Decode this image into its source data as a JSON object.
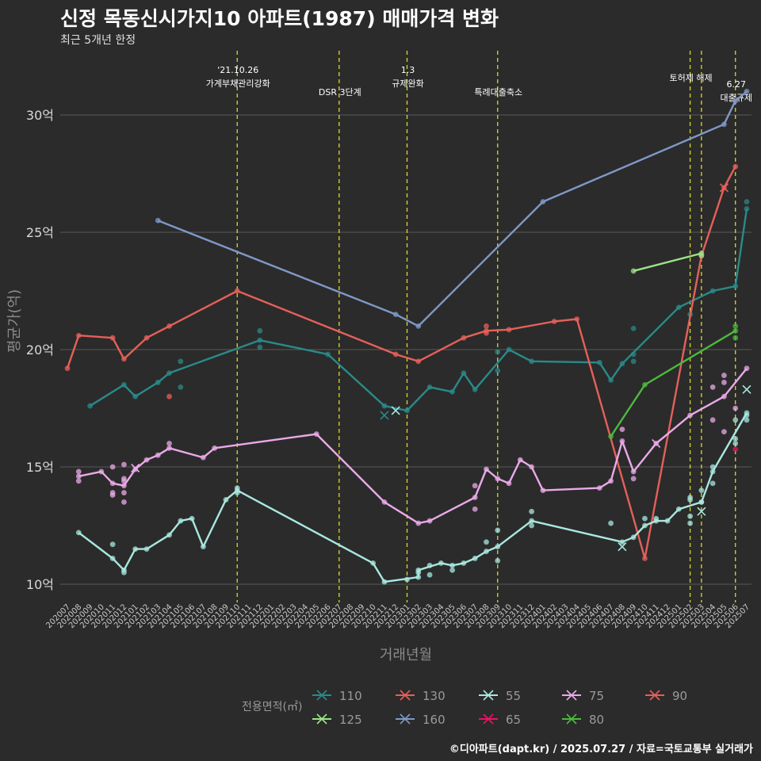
{
  "header": {
    "title": "신정 목동신시가지10 아파트(1987) 매매가격 변화",
    "subtitle": "최근 5개년 한정"
  },
  "caption": "©디아파트(dapt.kr) / 2025.07.27 / 자료=국토교통부 실거래가",
  "colors": {
    "background": "#2b2b2b",
    "grid": "#5a5a5a",
    "event_line": "#d9d92a"
  },
  "chart_data": {
    "type": "line",
    "title": "신정 목동신시가지10 아파트(1987) 매매가격 변화",
    "xlabel": "거래년월",
    "ylabel": "평균가(억)",
    "ylim": [
      9.3,
      32.3
    ],
    "yticks": [
      10,
      15,
      20,
      25,
      30
    ],
    "ytick_labels": [
      "10억",
      "15억",
      "20억",
      "25억",
      "30억"
    ],
    "x_categories": [
      "202007",
      "202008",
      "202009",
      "202010",
      "202011",
      "202012",
      "202101",
      "202102",
      "202103",
      "202104",
      "202105",
      "202106",
      "202107",
      "202108",
      "202109",
      "202110",
      "202111",
      "202112",
      "202201",
      "202202",
      "202203",
      "202204",
      "202205",
      "202206",
      "202207",
      "202208",
      "202209",
      "202210",
      "202211",
      "202212",
      "202301",
      "202302",
      "202303",
      "202304",
      "202305",
      "202306",
      "202307",
      "202308",
      "202309",
      "202310",
      "202311",
      "202312",
      "202401",
      "202402",
      "202403",
      "202404",
      "202405",
      "202406",
      "202407",
      "202408",
      "202409",
      "202410",
      "202411",
      "202412",
      "202501",
      "202502",
      "202503",
      "202504",
      "202505",
      "202506",
      "202507"
    ],
    "events": [
      {
        "x": 15,
        "label_lines": [
          "'21.10.26",
          "가계부채관리강화"
        ]
      },
      {
        "x": 24,
        "label_lines": [
          "DSR 3단계"
        ]
      },
      {
        "x": 30,
        "label_lines": [
          "1.3",
          "규제완화"
        ]
      },
      {
        "x": 38,
        "label_lines": [
          "특례대출축소"
        ]
      },
      {
        "x": 55,
        "label_lines": [
          "토허제 해제"
        ]
      },
      {
        "x": 56,
        "label_lines": []
      },
      {
        "x": 59,
        "label_lines": [
          "6.27",
          "대출규제"
        ]
      }
    ],
    "legend_title": "전용면적(㎡)",
    "series": [
      {
        "name": "110",
        "color": "#2a8a8a",
        "points": [
          [
            2,
            17.6
          ],
          [
            5,
            18.5
          ],
          [
            6,
            18.0
          ],
          [
            8,
            18.6
          ],
          [
            9,
            19.0
          ],
          [
            17,
            20.4
          ],
          [
            23,
            19.8
          ],
          [
            28,
            17.6
          ],
          [
            30,
            17.4
          ],
          [
            32,
            18.4
          ],
          [
            34,
            18.2
          ],
          [
            35,
            19.0
          ],
          [
            36,
            18.3
          ],
          [
            39,
            20.0
          ],
          [
            41,
            19.5
          ],
          [
            47,
            19.45
          ],
          [
            48,
            18.7
          ],
          [
            49,
            19.4
          ],
          [
            54,
            21.8
          ],
          [
            57,
            22.5
          ],
          [
            59,
            22.7
          ],
          [
            60,
            26.0
          ]
        ],
        "scatter": [
          [
            10,
            19.5
          ],
          [
            10,
            18.4
          ],
          [
            17,
            20.8
          ],
          [
            17,
            20.1
          ],
          [
            38,
            19.1
          ],
          [
            38,
            19.9
          ],
          [
            50,
            20.9
          ],
          [
            50,
            19.8
          ],
          [
            50,
            19.5
          ],
          [
            55,
            21.5
          ],
          [
            60,
            26.3
          ]
        ],
        "x_marks": [
          [
            28,
            17.2
          ]
        ]
      },
      {
        "name": "130",
        "color": "#e5605a",
        "points": [
          [
            0,
            19.2
          ],
          [
            1,
            20.6
          ],
          [
            4,
            20.5
          ],
          [
            5,
            19.6
          ],
          [
            7,
            20.5
          ],
          [
            9,
            21.0
          ],
          [
            15,
            22.5
          ],
          [
            29,
            19.8
          ],
          [
            31,
            19.5
          ],
          [
            35,
            20.5
          ],
          [
            37,
            20.8
          ],
          [
            39,
            20.85
          ],
          [
            43,
            21.2
          ],
          [
            45,
            21.3
          ],
          [
            51,
            11.1
          ],
          [
            56,
            24.0
          ],
          [
            58,
            26.9
          ],
          [
            59,
            27.8
          ]
        ],
        "scatter": [
          [
            9,
            18.0
          ],
          [
            37,
            21.0
          ],
          [
            37,
            20.7
          ]
        ],
        "x_marks": [
          [
            58,
            26.9
          ]
        ]
      },
      {
        "name": "55",
        "color": "#a8e8e0",
        "points": [
          [
            1,
            12.2
          ],
          [
            4,
            11.1
          ],
          [
            5,
            10.6
          ],
          [
            6,
            11.5
          ],
          [
            7,
            11.5
          ],
          [
            9,
            12.1
          ],
          [
            10,
            12.7
          ],
          [
            11,
            12.8
          ],
          [
            12,
            11.6
          ],
          [
            14,
            13.6
          ],
          [
            15,
            14.0
          ],
          [
            27,
            10.9
          ],
          [
            28,
            10.1
          ],
          [
            31,
            10.3
          ],
          [
            31,
            10.6
          ],
          [
            33,
            10.9
          ],
          [
            34,
            10.8
          ],
          [
            35,
            10.9
          ],
          [
            36,
            11.1
          ],
          [
            37,
            11.4
          ],
          [
            38,
            11.6
          ],
          [
            41,
            12.7
          ],
          [
            49,
            11.8
          ],
          [
            50,
            12.0
          ],
          [
            51,
            12.5
          ],
          [
            52,
            12.7
          ],
          [
            53,
            12.7
          ],
          [
            54,
            13.2
          ],
          [
            56,
            13.5
          ],
          [
            57,
            14.8
          ],
          [
            60,
            17.3
          ]
        ],
        "scatter": [
          [
            4,
            11.7
          ],
          [
            5,
            10.5
          ],
          [
            15,
            14.1
          ],
          [
            15,
            13.9
          ],
          [
            30,
            10.2
          ],
          [
            31,
            10.5
          ],
          [
            32,
            10.8
          ],
          [
            32,
            10.4
          ],
          [
            34,
            10.6
          ],
          [
            37,
            11.8
          ],
          [
            38,
            12.3
          ],
          [
            38,
            11.0
          ],
          [
            41,
            13.1
          ],
          [
            41,
            12.5
          ],
          [
            48,
            12.6
          ],
          [
            51,
            12.8
          ],
          [
            52,
            12.8
          ],
          [
            55,
            13.7
          ],
          [
            55,
            13.6
          ],
          [
            55,
            12.9
          ],
          [
            55,
            12.6
          ],
          [
            56,
            14.0
          ],
          [
            56,
            13.5
          ],
          [
            57,
            15.0
          ],
          [
            57,
            14.3
          ],
          [
            59,
            16.2
          ],
          [
            59,
            16.0
          ],
          [
            59,
            17.0
          ],
          [
            60,
            17.0
          ],
          [
            60,
            17.2
          ]
        ],
        "x_marks": [
          [
            49,
            11.6
          ],
          [
            56,
            13.1
          ],
          [
            60,
            18.3
          ],
          [
            29,
            17.4
          ]
        ]
      },
      {
        "name": "75",
        "color": "#eaaae8",
        "points": [
          [
            1,
            14.6
          ],
          [
            3,
            14.8
          ],
          [
            4,
            14.3
          ],
          [
            5,
            14.2
          ],
          [
            6,
            14.9
          ],
          [
            7,
            15.3
          ],
          [
            8,
            15.5
          ],
          [
            9,
            15.8
          ],
          [
            12,
            15.4
          ],
          [
            13,
            15.8
          ],
          [
            22,
            16.4
          ],
          [
            28,
            13.5
          ],
          [
            31,
            12.6
          ],
          [
            32,
            12.7
          ],
          [
            36,
            13.7
          ],
          [
            37,
            14.9
          ],
          [
            38,
            14.5
          ],
          [
            39,
            14.3
          ],
          [
            40,
            15.3
          ],
          [
            41,
            15.0
          ],
          [
            42,
            14.0
          ],
          [
            47,
            14.1
          ],
          [
            48,
            14.4
          ],
          [
            49,
            16.1
          ],
          [
            50,
            14.8
          ],
          [
            52,
            16.0
          ],
          [
            55,
            17.2
          ],
          [
            58,
            18.0
          ],
          [
            60,
            19.2
          ]
        ],
        "scatter": [
          [
            1,
            14.8
          ],
          [
            1,
            14.4
          ],
          [
            4,
            15.0
          ],
          [
            4,
            13.9
          ],
          [
            4,
            13.8
          ],
          [
            5,
            15.1
          ],
          [
            5,
            14.5
          ],
          [
            5,
            14.4
          ],
          [
            5,
            13.9
          ],
          [
            5,
            13.5
          ],
          [
            9,
            16.0
          ],
          [
            36,
            14.2
          ],
          [
            36,
            13.2
          ],
          [
            49,
            16.6
          ],
          [
            50,
            14.5
          ],
          [
            57,
            18.4
          ],
          [
            57,
            17.0
          ],
          [
            58,
            18.9
          ],
          [
            58,
            18.6
          ],
          [
            58,
            16.5
          ],
          [
            59,
            17.5
          ]
        ],
        "x_marks": [
          [
            6,
            14.95
          ],
          [
            52,
            16.0
          ]
        ]
      },
      {
        "name": "90",
        "color": "#e5605a",
        "points": [],
        "scatter": [],
        "x_marks": []
      },
      {
        "name": "125",
        "color": "#9be38a",
        "points": [
          [
            50,
            23.35
          ],
          [
            56,
            24.1
          ]
        ],
        "scatter": [
          [
            56,
            24.0
          ]
        ],
        "x_marks": []
      },
      {
        "name": "160",
        "color": "#7f98c8",
        "points": [
          [
            8,
            25.5
          ],
          [
            29,
            21.5
          ],
          [
            31,
            21.0
          ],
          [
            42,
            26.3
          ],
          [
            58,
            29.6
          ],
          [
            59,
            30.6
          ],
          [
            60,
            31.0
          ]
        ],
        "scatter": [],
        "x_marks": []
      },
      {
        "name": "65",
        "color": "#ee1166",
        "points": [],
        "scatter": [
          [
            59,
            15.75
          ]
        ],
        "x_marks": []
      },
      {
        "name": "80",
        "color": "#4cbb3c",
        "points": [
          [
            48,
            16.3
          ],
          [
            51,
            18.5
          ],
          [
            59,
            20.8
          ]
        ],
        "scatter": [
          [
            59,
            20.5
          ],
          [
            59,
            21.0
          ]
        ],
        "x_marks": []
      }
    ]
  }
}
